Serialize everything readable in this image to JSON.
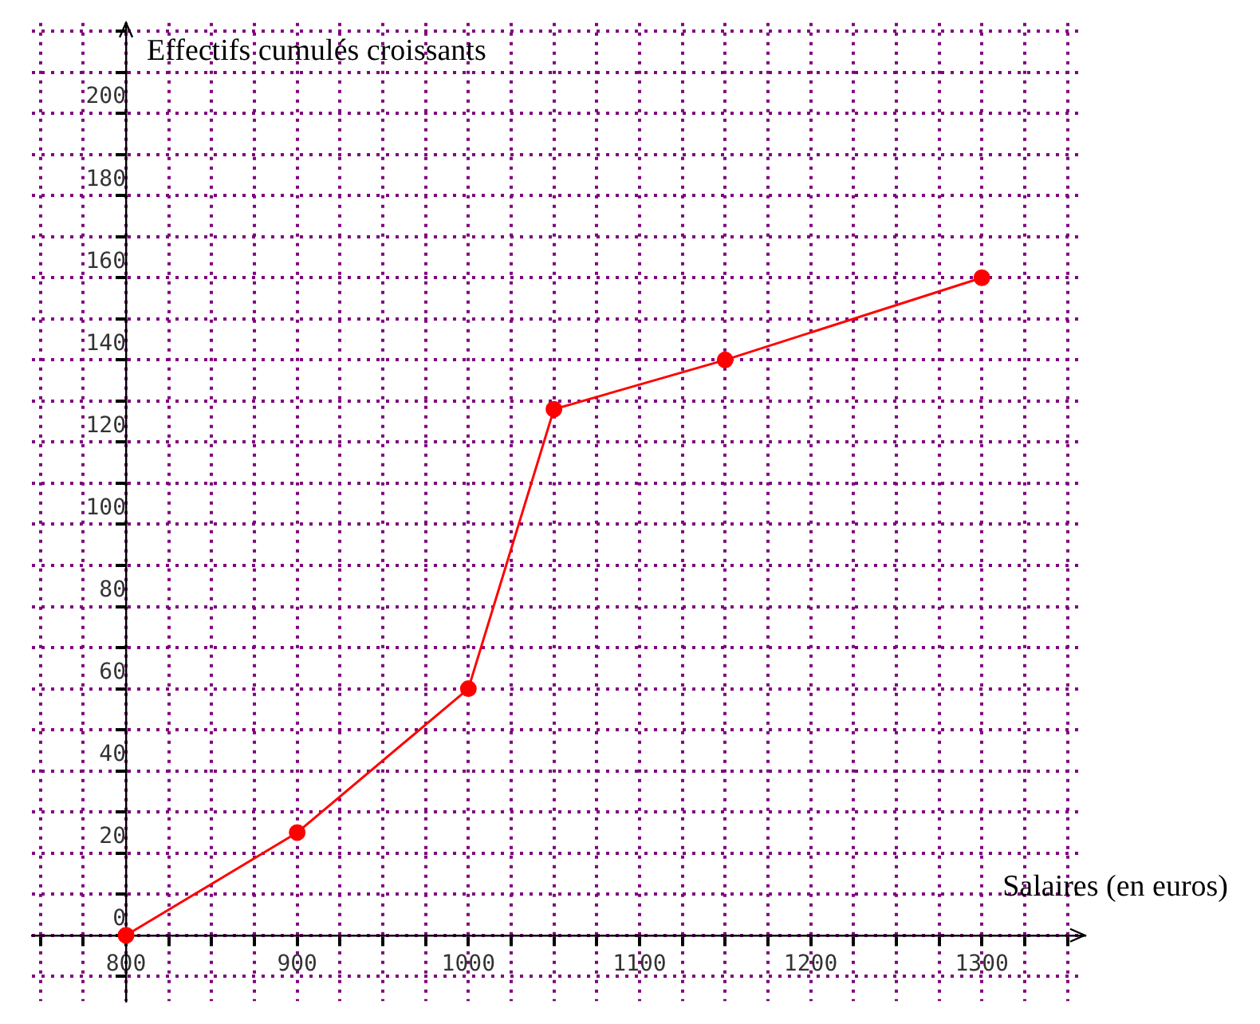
{
  "chart_data": {
    "type": "line",
    "xlabel": "Salaires (en euros)",
    "ylabel": "Effectifs cumulés croissants",
    "x": [
      800,
      900,
      1000,
      1050,
      1150,
      1300
    ],
    "series": [
      {
        "color": "#ff0000",
        "values": [
          0,
          25,
          60,
          128,
          140,
          160
        ]
      }
    ],
    "xlim": [
      745,
      1360
    ],
    "ylim": [
      -16,
      222
    ],
    "xticks": [
      {
        "value": 750,
        "label": null
      },
      {
        "value": 775,
        "label": null
      },
      800,
      {
        "value": 825,
        "label": null
      },
      {
        "value": 850,
        "label": null
      },
      {
        "value": 875,
        "label": null
      },
      900,
      {
        "value": 925,
        "label": null
      },
      {
        "value": 950,
        "label": null
      },
      {
        "value": 975,
        "label": null
      },
      1000,
      {
        "value": 1025,
        "label": null
      },
      {
        "value": 1050,
        "label": null
      },
      {
        "value": 1075,
        "label": null
      },
      1100,
      {
        "value": 1125,
        "label": null
      },
      {
        "value": 1150,
        "label": null
      },
      {
        "value": 1175,
        "label": null
      },
      1200,
      {
        "value": 1225,
        "label": null
      },
      {
        "value": 1250,
        "label": null
      },
      {
        "value": 1275,
        "label": null
      },
      1300,
      {
        "value": 1325,
        "label": null
      },
      {
        "value": 1350,
        "label": null
      }
    ],
    "yticks": [
      {
        "value": -10,
        "label": null
      },
      0,
      {
        "value": 10,
        "label": null
      },
      20,
      {
        "value": 30,
        "label": null
      },
      40,
      {
        "value": 50,
        "label": null
      },
      60,
      {
        "value": 70,
        "label": null
      },
      80,
      {
        "value": 90,
        "label": null
      },
      100,
      {
        "value": 110,
        "label": null
      },
      120,
      {
        "value": 130,
        "label": null
      },
      140,
      {
        "value": 150,
        "label": null
      },
      160,
      {
        "value": 170,
        "label": null
      },
      180,
      {
        "value": 190,
        "label": null
      },
      200,
      {
        "value": 210,
        "label": null
      },
      {
        "value": 220,
        "label": null
      }
    ],
    "grid": true,
    "legend": false,
    "marker": "circle",
    "line_style": "solid"
  }
}
